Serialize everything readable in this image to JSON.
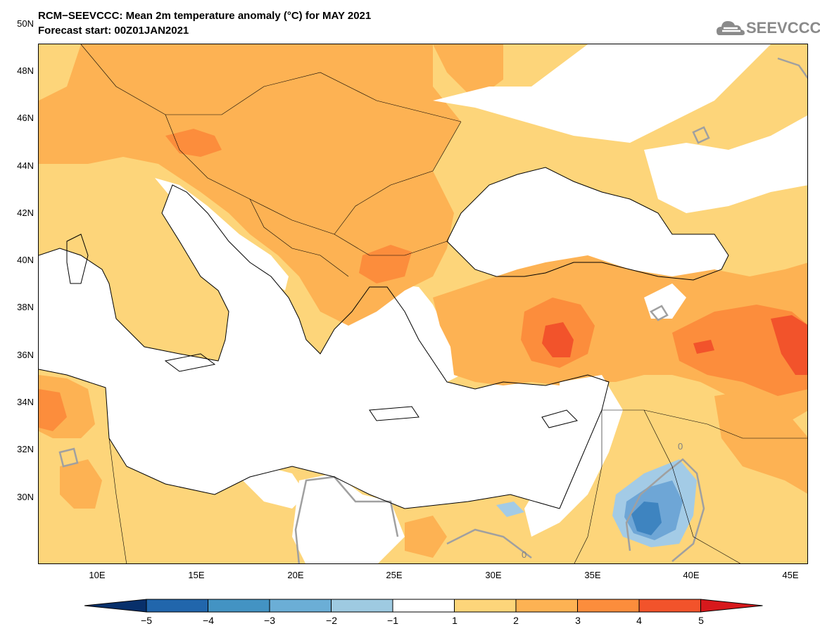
{
  "header": {
    "title_line1": "RCM−SEEVCCC: Mean 2m temperature anomaly (°C) for MAY 2021",
    "title_line2": "Forecast start: 00Z01JAN2021",
    "logo_text": "SEEVCCC"
  },
  "map": {
    "lat_labels": [
      "50N",
      "48N",
      "46N",
      "44N",
      "42N",
      "40N",
      "38N",
      "36N",
      "34N",
      "32N",
      "30N"
    ],
    "lon_labels": [
      "10E",
      "15E",
      "20E",
      "25E",
      "30E",
      "35E",
      "40E",
      "45E"
    ],
    "contour_label": "0",
    "colors": {
      "sea": "#ffffff",
      "anom_1_2": "#fdd57a",
      "anom_2_3": "#fdb253",
      "anom_3_4": "#fc8d3c",
      "anom_4_5": "#f2532b",
      "anom_neg_1_2": "#a3cbe6",
      "anom_neg_2_3": "#6ea6d6",
      "anom_neg_3_4": "#3e84c0",
      "coast": "#000000",
      "zero_contour": "#a0a0a0"
    }
  },
  "colorbar": {
    "labels": [
      "−5",
      "−4",
      "−3",
      "−2",
      "−1",
      "1",
      "2",
      "3",
      "4",
      "5"
    ],
    "colors": [
      "#08306b",
      "#2166ac",
      "#4393c3",
      "#6baed6",
      "#9ecae1",
      "#ffffff",
      "#fdd57a",
      "#fdb253",
      "#fc8d3c",
      "#f2532b",
      "#d7191c"
    ]
  }
}
